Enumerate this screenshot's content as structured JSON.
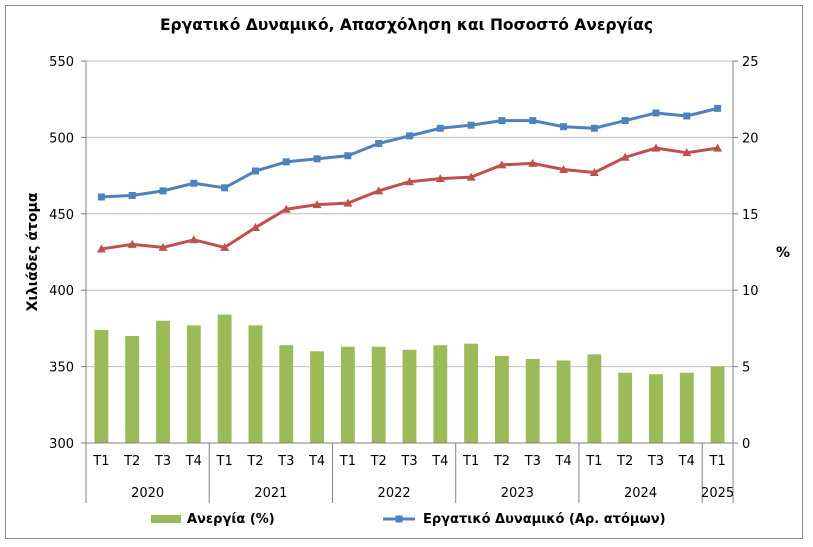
{
  "chart_data": {
    "type": "bar-line-combo",
    "title": "Εργατικό Δυναμικό, Απασχόληση και Ποσοστό Ανεργίας",
    "ylabel_left": "Χιλιάδες άτομα",
    "ylabel_right": "%",
    "ylim_left": [
      300,
      550
    ],
    "ylim_right": [
      0,
      25
    ],
    "yticks_left": [
      "300",
      "350",
      "400",
      "450",
      "500",
      "550"
    ],
    "yticks_right": [
      "0",
      "5",
      "10",
      "15",
      "20",
      "25"
    ],
    "categories": [
      "T1",
      "T2",
      "T3",
      "T4",
      "T1",
      "T2",
      "T3",
      "T4",
      "T1",
      "T2",
      "T3",
      "T4",
      "T1",
      "T2",
      "T3",
      "T4",
      "T1",
      "T2",
      "T3",
      "T4",
      "T1"
    ],
    "years": [
      {
        "label": "2020",
        "count": 4
      },
      {
        "label": "2021",
        "count": 4
      },
      {
        "label": "2022",
        "count": 4
      },
      {
        "label": "2023",
        "count": 4
      },
      {
        "label": "2024",
        "count": 4
      },
      {
        "label": "2025",
        "count": 1
      }
    ],
    "series": [
      {
        "name": "Ανεργία (%)",
        "type": "bar",
        "axis": "right",
        "color": "#9bbb59",
        "values": [
          7.4,
          7.0,
          8.0,
          7.7,
          8.4,
          7.7,
          6.4,
          6.0,
          6.3,
          6.3,
          6.1,
          6.4,
          6.5,
          5.7,
          5.5,
          5.4,
          5.8,
          4.6,
          4.5,
          4.6,
          5.0
        ]
      },
      {
        "name": "Εργατικό Δυναμικό (Αρ. ατόμων)",
        "type": "line",
        "axis": "left",
        "color": "#4f81bd",
        "marker": "square",
        "values": [
          461,
          462,
          465,
          470,
          467,
          478,
          484,
          486,
          488,
          496,
          501,
          506,
          508,
          511,
          511,
          507,
          506,
          511,
          516,
          514,
          519
        ]
      },
      {
        "type": "line",
        "axis": "left",
        "color": "#c0504d",
        "marker": "triangle",
        "values": [
          427,
          430,
          428,
          433,
          428,
          441,
          453,
          456,
          457,
          465,
          471,
          473,
          474,
          482,
          483,
          479,
          477,
          487,
          493,
          490,
          493
        ]
      }
    ],
    "grid": true,
    "legend_position": "bottom"
  }
}
